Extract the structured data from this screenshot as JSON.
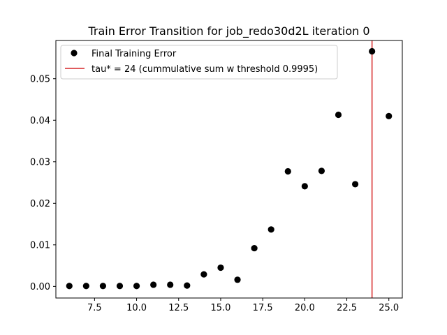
{
  "chart_data": {
    "type": "scatter",
    "title": "Train Error Transition for job_redo30d2L iteration 0",
    "xlabel": "",
    "ylabel": "",
    "xlim": [
      5.2,
      25.8
    ],
    "ylim": [
      -0.0028,
      0.0592
    ],
    "x_ticks": [
      7.5,
      10.0,
      12.5,
      15.0,
      17.5,
      20.0,
      22.5,
      25.0
    ],
    "x_tick_labels": [
      "7.5",
      "10.0",
      "12.5",
      "15.0",
      "17.5",
      "20.0",
      "22.5",
      "25.0"
    ],
    "y_ticks": [
      0.0,
      0.01,
      0.02,
      0.03,
      0.04,
      0.05
    ],
    "y_tick_labels": [
      "0.00",
      "0.01",
      "0.02",
      "0.03",
      "0.04",
      "0.05"
    ],
    "grid": false,
    "legend_position": "top-left",
    "series": [
      {
        "name": "Final Training Error",
        "kind": "scatter",
        "color": "#000000",
        "x": [
          6,
          7,
          8,
          9,
          10,
          11,
          12,
          13,
          14,
          15,
          16,
          17,
          18,
          19,
          20,
          21,
          22,
          23,
          24,
          25
        ],
        "y": [
          0.0001,
          0.0001,
          0.0001,
          0.0001,
          0.0001,
          0.0004,
          0.0004,
          0.0002,
          0.0029,
          0.0045,
          0.0016,
          0.0092,
          0.0137,
          0.0277,
          0.0241,
          0.0278,
          0.0413,
          0.0246,
          0.0566,
          0.041
        ]
      },
      {
        "name": "tau* = 24 (cummulative sum w threshold 0.9995)",
        "kind": "vline",
        "color": "#d62728",
        "x": 24
      }
    ]
  }
}
